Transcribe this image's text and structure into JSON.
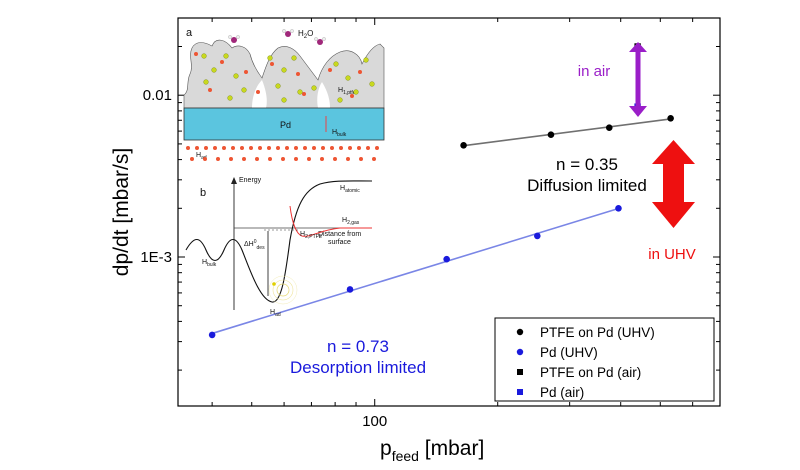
{
  "chart_data": {
    "type": "scatter",
    "xlabel": "p",
    "xlabel_sub": "feed",
    "xlabel_unit": " [mbar]",
    "ylabel": "dp/dt [mbar/s]",
    "x_scale": "log",
    "y_scale": "log",
    "xlim": [
      33,
      700
    ],
    "ylim": [
      0.00012,
      0.03
    ],
    "x_ticks": [
      {
        "value": 100,
        "label": "100"
      }
    ],
    "y_ticks": [
      {
        "value": 0.001,
        "label": "1E-3"
      },
      {
        "value": 0.01,
        "label": "0.01"
      }
    ],
    "grid": false,
    "legend_position": "bottom-right",
    "series": [
      {
        "name": "PTFE on Pd (UHV)",
        "marker": "circle",
        "color": "#000000",
        "fit_line_color": "#707070",
        "x": [
          165,
          270,
          375,
          530
        ],
        "y": [
          0.0049,
          0.0057,
          0.0063,
          0.0072
        ]
      },
      {
        "name": "Pd (UHV)",
        "marker": "circle",
        "color": "#1a1adc",
        "fit_line_color": "#7a86e6",
        "x": [
          40,
          87,
          150,
          250,
          395
        ],
        "y": [
          0.00033,
          0.00063,
          0.00097,
          0.00135,
          0.002
        ]
      },
      {
        "name": "PTFE on Pd (air)",
        "marker": "square",
        "color": "#000000",
        "x": [
          440
        ],
        "y": [
          0.02
        ]
      },
      {
        "name": "Pd (air)",
        "marker": "square",
        "color": "#1a1adc",
        "x": [
          440
        ],
        "y": [
          0.0085
        ]
      }
    ],
    "annotations": [
      {
        "lines": [
          "n = 0.35",
          "Diffusion limited"
        ],
        "color": "#000000"
      },
      {
        "lines": [
          "n = 0.73",
          "Desorption limited"
        ],
        "color": "#1a1adc"
      },
      {
        "lines": [
          "in air"
        ],
        "color": "#9a1ec8"
      },
      {
        "lines": [
          "in UHV"
        ],
        "color": "#ee1010"
      }
    ],
    "colors": {
      "air_arrow": "#9a1ec8",
      "uhv_arrow": "#ee1010"
    }
  },
  "inset": {
    "panel_a": {
      "label": "a",
      "water_label": "H",
      "water_sub": "2",
      "water_tail": "O",
      "pd_label": "Pd",
      "h_bulk_label": "H",
      "h_bulk_sub": "bulk",
      "h_ad_label": "H",
      "h_ad_sub": "ad",
      "h_ptfe_label": "H",
      "h_ptfe_sub": "1,ptfe",
      "colors": {
        "pd_layer": "#5bc5df",
        "ptfe_block": "#d9d9d9",
        "hydrogen": "#ee5533",
        "fluorine": "#c8d81e",
        "water_o": "#a0287a"
      }
    },
    "panel_b": {
      "label": "b",
      "energy_label": "Energy",
      "distance_label_1": "Distance from",
      "distance_label_2": "surface",
      "h_atomic_label": "H",
      "h_atomic_sub": "atomic",
      "h_2gas_label": "H",
      "h_2gas_sub": "2,gas",
      "h_2ptfe_label": "H",
      "h_2ptfe_sub": "2,PTFE",
      "h_bulk_label": "H",
      "h_bulk_sub": "bulk",
      "h_ad_label": "H",
      "h_ad_sub": "ad",
      "dh_label": "ΔH",
      "dh_sup": "0",
      "dh_sub": "des"
    }
  }
}
